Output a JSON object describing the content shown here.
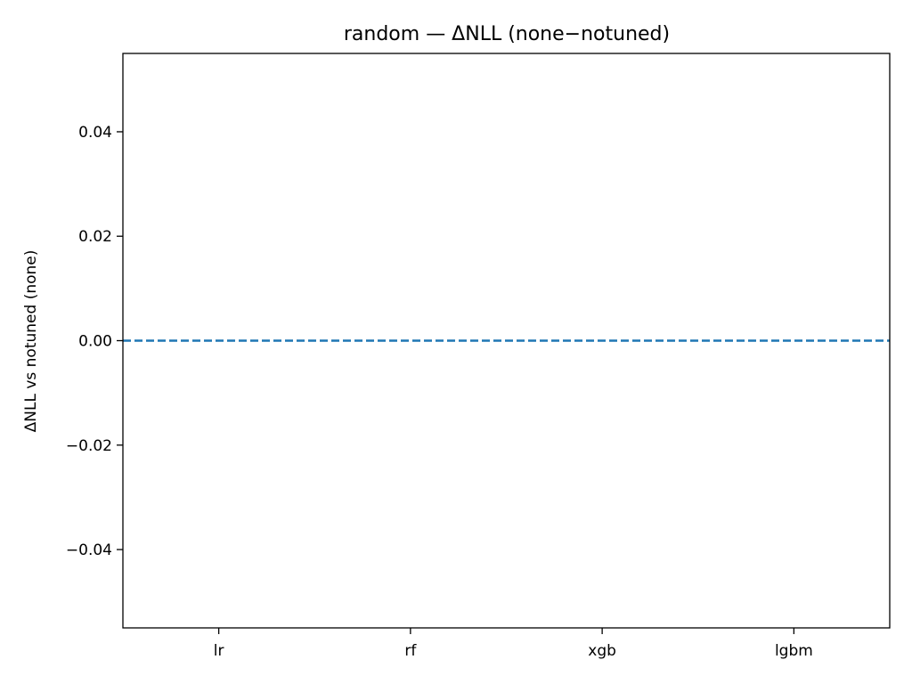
{
  "chart_data": {
    "type": "bar",
    "title": "random — ΔNLL (none−notuned)",
    "xlabel": "",
    "ylabel": "ΔNLL vs notuned (none)",
    "categories": [
      "lr",
      "rf",
      "xgb",
      "lgbm"
    ],
    "series": [
      {
        "values": [
          0,
          0,
          0,
          0
        ]
      }
    ],
    "ylim": [
      -0.055,
      0.055
    ],
    "yticks": [
      -0.04,
      -0.02,
      0.0,
      0.02,
      0.04
    ],
    "ytick_labels": [
      "−0.04",
      "−0.02",
      "0.00",
      "0.02",
      "0.04"
    ],
    "reference_line": {
      "y": 0.0,
      "style": "dashed",
      "color": "#1f77b4"
    },
    "grid": false,
    "legend": "none"
  }
}
